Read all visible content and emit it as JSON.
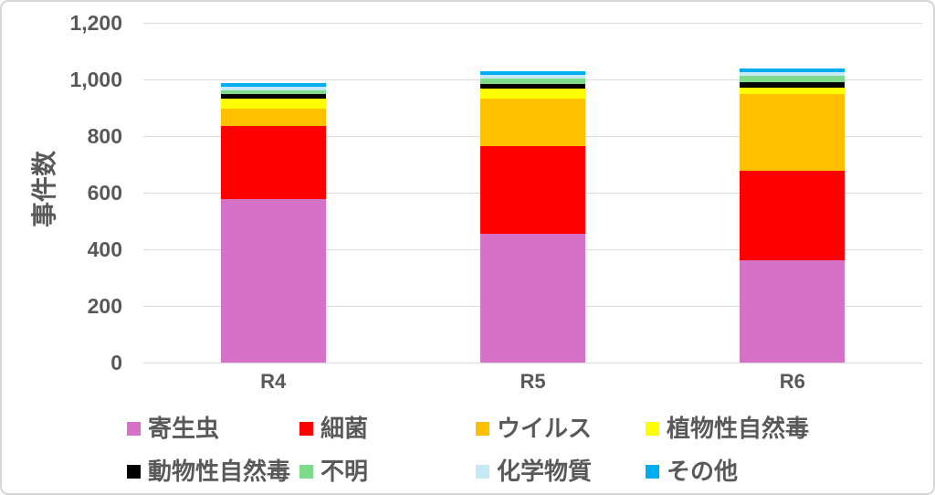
{
  "chart_data": {
    "type": "bar",
    "subtype": "stacked-column",
    "title": "",
    "xlabel": "",
    "ylabel": "事件数",
    "categories": [
      "R4",
      "R5",
      "R6"
    ],
    "ylim": [
      0,
      1200
    ],
    "grid": true,
    "legend_position": "bottom",
    "background_color": "#ffffff",
    "gridline_color": "#dcdcdc",
    "text_color": "#595959",
    "yticks": [
      {
        "value": 0,
        "label": "0"
      },
      {
        "value": 200,
        "label": "200"
      },
      {
        "value": 400,
        "label": "400"
      },
      {
        "value": 600,
        "label": "600"
      },
      {
        "value": 800,
        "label": "800"
      },
      {
        "value": 1000,
        "label": "1,000"
      },
      {
        "value": 1200,
        "label": "1,200"
      }
    ],
    "series": [
      {
        "name": "寄生虫",
        "color": "#d671c8",
        "values": [
          577,
          456,
          362
        ]
      },
      {
        "name": "細菌",
        "color": "#ff0000",
        "values": [
          258,
          310,
          315
        ]
      },
      {
        "name": "ウイルス",
        "color": "#ffc000",
        "values": [
          63,
          167,
          272
        ]
      },
      {
        "name": "植物性自然毒",
        "color": "#ffff00",
        "values": [
          34,
          35,
          21
        ]
      },
      {
        "name": "動物性自然毒",
        "color": "#000000",
        "values": [
          16,
          16,
          20
        ]
      },
      {
        "name": "不明",
        "color": "#7edb8c",
        "values": [
          9,
          19,
          24
        ]
      },
      {
        "name": "化学物質",
        "color": "#c6e9f6",
        "values": [
          2,
          13,
          11
        ]
      },
      {
        "name": "その他",
        "color": "#00aeef",
        "values": [
          3,
          12,
          13
        ]
      }
    ]
  }
}
